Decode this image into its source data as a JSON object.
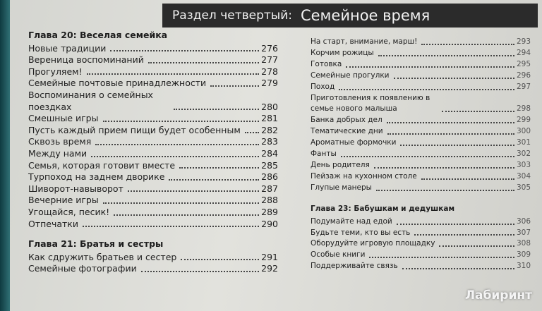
{
  "header": {
    "section": "Раздел четвертый:",
    "title": "Семейное время"
  },
  "left": [
    {
      "chapter": "Глава 20: Веселая семейка",
      "entries": [
        {
          "title": "Новые традиции",
          "page": 276
        },
        {
          "title": "Вереница воспоминаний",
          "page": 277
        },
        {
          "title": "Прогуляем!",
          "page": 278
        },
        {
          "title": "Семейные почтовые принадлежности",
          "page": 279
        },
        {
          "title": "Воспоминания о семейных поездках",
          "page": 280
        },
        {
          "title": "Смешные игры",
          "page": 281
        },
        {
          "title": "Пусть каждый прием пищи будет особенным",
          "page": 282
        },
        {
          "title": "Сквозь время",
          "page": 283
        },
        {
          "title": "Между нами",
          "page": 284
        },
        {
          "title": "Семья, которая готовит вместе",
          "page": 285
        },
        {
          "title": "Турпоход на заднем дворике",
          "page": 286
        },
        {
          "title": "Шиворот-навыворот",
          "page": 287
        },
        {
          "title": "Вечерние игры",
          "page": 288
        },
        {
          "title": "Угощайся, песик!",
          "page": 289
        },
        {
          "title": "Отпечатки",
          "page": 290
        }
      ]
    },
    {
      "chapter": "Глава 21: Братья и сестры",
      "entries": [
        {
          "title": "Как сдружить братьев и сестер",
          "page": 291
        },
        {
          "title": "Семейные фотографии",
          "page": 292
        }
      ]
    }
  ],
  "right": [
    {
      "entries": [
        {
          "title": "На старт, внимание, марш!",
          "page": 293
        },
        {
          "title": "Корчим рожицы",
          "page": 294
        },
        {
          "title": "Готовка",
          "page": 295
        },
        {
          "title": "Семейные прогулки",
          "page": 296
        },
        {
          "title": "Поход",
          "page": 297
        },
        {
          "title": "Приготовления к появлению в семье нового малыша",
          "page": 298
        },
        {
          "title": "Банка добрых дел",
          "page": 299
        },
        {
          "title": "Тематические дни",
          "page": 300
        },
        {
          "title": "Ароматные формочки",
          "page": 301
        },
        {
          "title": "Фанты",
          "page": 302
        },
        {
          "title": "День родителя",
          "page": 303
        },
        {
          "title": "Пейзаж на кухонном столе",
          "page": 304
        },
        {
          "title": "Глупые манеры",
          "page": 305
        }
      ]
    },
    {
      "chapter": "Глава 23: Бабушкам и дедушкам",
      "entries": [
        {
          "title": "Подумайте над едой",
          "page": 306
        },
        {
          "title": "Будьте теми, кто вы есть",
          "page": 307
        },
        {
          "title": "Оборудуйте игровую площадку",
          "page": 308
        },
        {
          "title": "Особые книги",
          "page": 309
        },
        {
          "title": "Поддерживайте связь",
          "page": 310
        }
      ]
    }
  ],
  "watermark": "Лабиринт"
}
